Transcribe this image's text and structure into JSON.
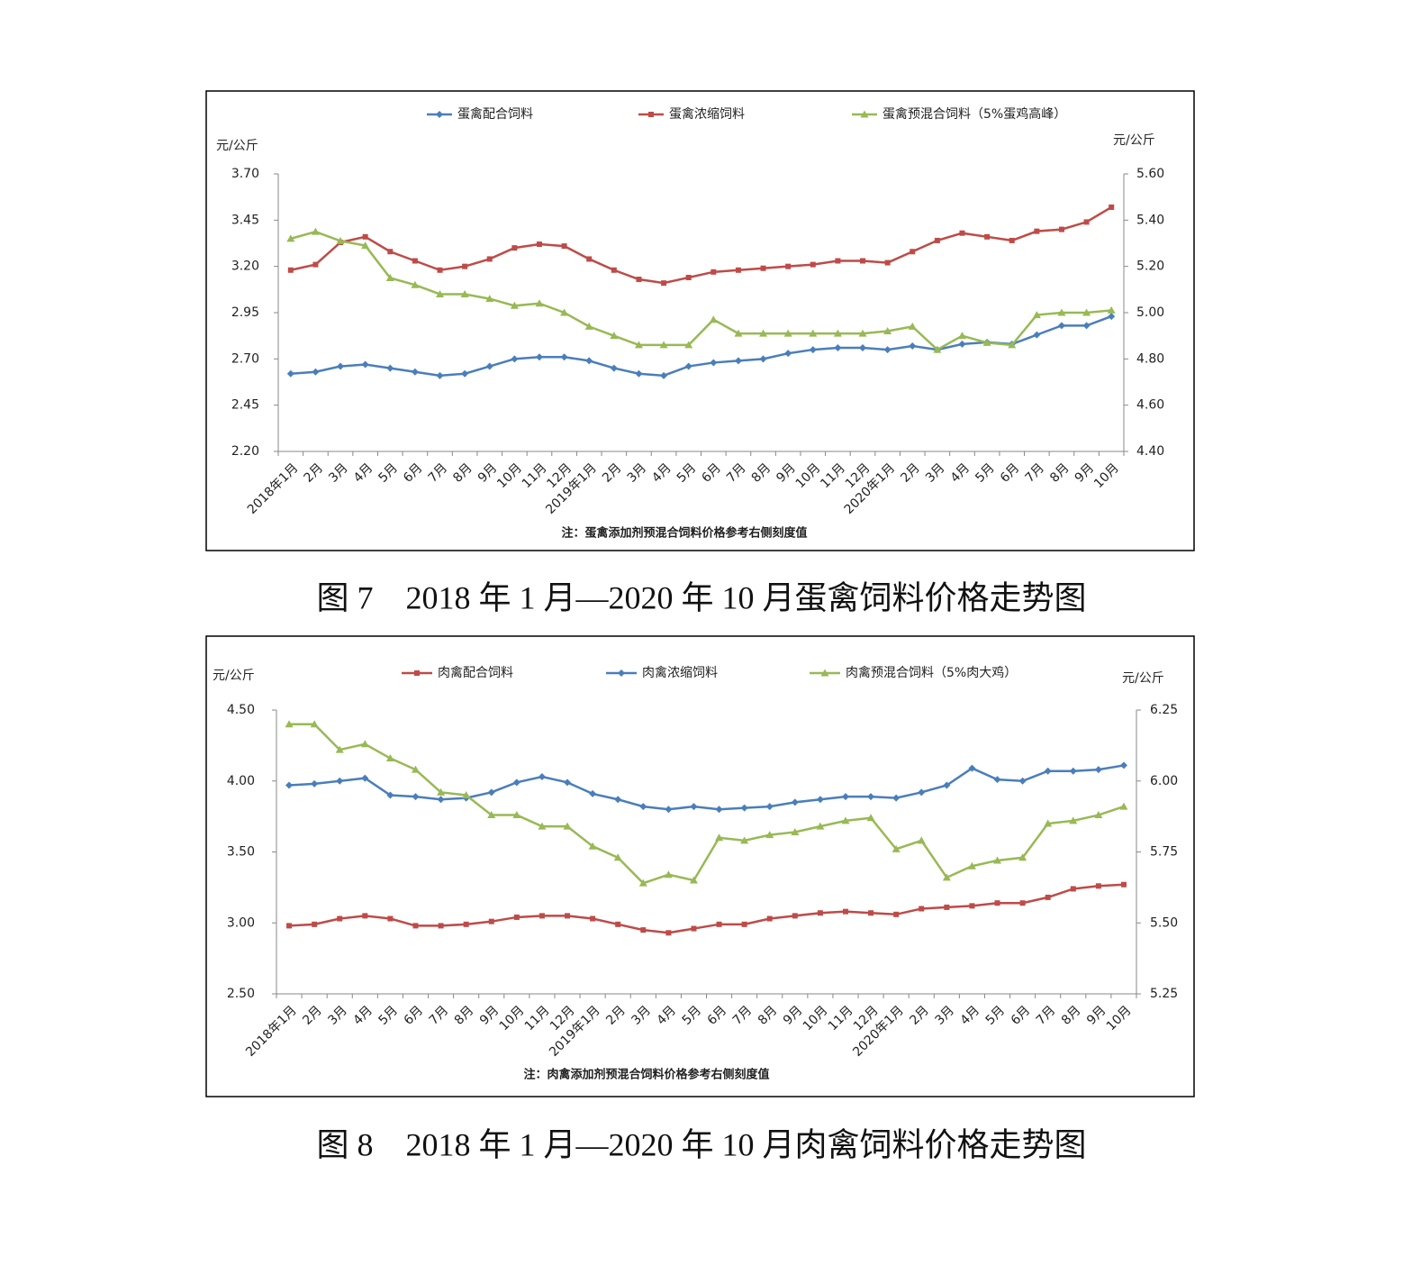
{
  "chart_data": [
    {
      "type": "line",
      "caption": "图 7　2018 年 1 月—2020 年 10 月蛋禽饲料价格走势图",
      "ylabel": "元/公斤",
      "y2label": "元/公斤",
      "note": "注：蛋禽添加剂预混合饲料价格参考右侧刻度值",
      "categories": [
        "2018年1月",
        "2月",
        "3月",
        "4月",
        "5月",
        "6月",
        "7月",
        "8月",
        "9月",
        "10月",
        "11月",
        "12月",
        "2019年1月",
        "2月",
        "3月",
        "4月",
        "5月",
        "6月",
        "7月",
        "8月",
        "9月",
        "10月",
        "11月",
        "12月",
        "2020年1月",
        "2月",
        "3月",
        "4月",
        "5月",
        "6月",
        "7月",
        "8月",
        "9月",
        "10月"
      ],
      "ylim": [
        2.2,
        3.7
      ],
      "yticks": [
        {
          "value": 2.2,
          "label": "2.20"
        },
        2.45,
        {
          "value": 2.7,
          "label": "2.70"
        },
        2.95,
        {
          "value": 3.2,
          "label": "3.20"
        },
        3.45,
        {
          "value": 3.7,
          "label": "3.70"
        }
      ],
      "y2lim": [
        4.4,
        5.6
      ],
      "y2ticks": [
        {
          "value": 4.4,
          "label": "4.40"
        },
        {
          "value": 4.6,
          "label": "4.60"
        },
        {
          "value": 4.8,
          "label": "4.80"
        },
        {
          "value": 5.0,
          "label": "5.00"
        },
        {
          "value": 5.2,
          "label": "5.20"
        },
        {
          "value": 5.4,
          "label": "5.40"
        },
        {
          "value": 5.6,
          "label": "5.60"
        }
      ],
      "series": [
        {
          "name": "蛋禽配合饲料",
          "color": "#4a7ebb",
          "marker": "diamond",
          "values": [
            2.62,
            2.63,
            2.66,
            2.67,
            2.65,
            2.63,
            2.61,
            2.62,
            2.66,
            2.7,
            2.71,
            2.71,
            2.69,
            2.65,
            2.62,
            2.61,
            2.66,
            2.68,
            2.69,
            2.7,
            2.73,
            2.75,
            2.76,
            2.76,
            2.75,
            2.77,
            2.75,
            2.78,
            2.79,
            2.78,
            2.83,
            2.88,
            2.88,
            2.93
          ]
        },
        {
          "name": "蛋禽浓缩饲料",
          "color": "#be4b48",
          "marker": "square",
          "values": [
            3.18,
            3.21,
            3.33,
            3.36,
            3.28,
            3.23,
            3.18,
            3.2,
            3.24,
            3.3,
            3.32,
            3.31,
            3.24,
            3.18,
            3.13,
            3.11,
            3.14,
            3.17,
            3.18,
            3.19,
            3.2,
            3.21,
            3.23,
            3.23,
            3.22,
            3.28,
            3.34,
            3.38,
            3.36,
            3.34,
            3.39,
            3.4,
            3.44,
            3.52
          ]
        },
        {
          "name": "蛋禽预混合饲料（5%蛋鸡高峰）",
          "color": "#98b954",
          "marker": "triangle",
          "axis": "y2",
          "values": [
            5.32,
            5.35,
            5.31,
            5.29,
            5.15,
            5.12,
            5.08,
            5.08,
            5.06,
            5.03,
            5.04,
            5.0,
            4.94,
            4.9,
            4.86,
            4.86,
            4.86,
            4.97,
            4.91,
            4.91,
            4.91,
            4.91,
            4.91,
            4.91,
            4.92,
            4.94,
            4.84,
            4.9,
            4.87,
            4.86,
            4.99,
            5.0,
            5.0,
            5.01
          ]
        }
      ]
    },
    {
      "type": "line",
      "caption": "图 8　2018 年 1 月—2020 年 10 月肉禽饲料价格走势图",
      "ylabel": "元/公斤",
      "y2label": "元/公斤",
      "note": "注：肉禽添加剂预混合饲料价格参考右侧刻度值",
      "categories": [
        "2018年1月",
        "2月",
        "3月",
        "4月",
        "5月",
        "6月",
        "7月",
        "8月",
        "9月",
        "10月",
        "11月",
        "12月",
        "2019年1月",
        "2月",
        "3月",
        "4月",
        "5月",
        "6月",
        "7月",
        "8月",
        "9月",
        "10月",
        "11月",
        "12月",
        "2020年1月",
        "2月",
        "3月",
        "4月",
        "5月",
        "6月",
        "7月",
        "8月",
        "9月",
        "10月"
      ],
      "ylim": [
        2.5,
        4.5
      ],
      "yticks": [
        {
          "value": 2.5,
          "label": "2.50"
        },
        {
          "value": 3.0,
          "label": "3.00"
        },
        {
          "value": 3.5,
          "label": "3.50"
        },
        {
          "value": 4.0,
          "label": "4.00"
        },
        {
          "value": 4.5,
          "label": "4.50"
        }
      ],
      "y2lim": [
        5.25,
        6.25
      ],
      "y2ticks": [
        5.25,
        {
          "value": 5.5,
          "label": "5.50"
        },
        5.75,
        {
          "value": 6.0,
          "label": "6.00"
        },
        6.25
      ],
      "series": [
        {
          "name": "肉禽配合饲料",
          "color": "#be4b48",
          "marker": "square",
          "values": [
            2.98,
            2.99,
            3.03,
            3.05,
            3.03,
            2.98,
            2.98,
            2.99,
            3.01,
            3.04,
            3.05,
            3.05,
            3.03,
            2.99,
            2.95,
            2.93,
            2.96,
            2.99,
            2.99,
            3.03,
            3.05,
            3.07,
            3.08,
            3.07,
            3.06,
            3.1,
            3.11,
            3.12,
            3.14,
            3.14,
            3.18,
            3.24,
            3.26,
            3.27
          ]
        },
        {
          "name": "肉禽浓缩饲料",
          "color": "#4a7ebb",
          "marker": "diamond",
          "values": [
            3.97,
            3.98,
            4.0,
            4.02,
            3.9,
            3.89,
            3.87,
            3.88,
            3.92,
            3.99,
            4.03,
            3.99,
            3.91,
            3.87,
            3.82,
            3.8,
            3.82,
            3.8,
            3.81,
            3.82,
            3.85,
            3.87,
            3.89,
            3.89,
            3.88,
            3.92,
            3.97,
            4.09,
            4.01,
            4.0,
            4.07,
            4.07,
            4.08,
            4.11
          ]
        },
        {
          "name": "肉禽预混合饲料（5%肉大鸡）",
          "color": "#98b954",
          "marker": "triangle",
          "axis": "y2",
          "values": [
            6.2,
            6.2,
            6.11,
            6.13,
            6.08,
            6.04,
            5.96,
            5.95,
            5.88,
            5.88,
            5.84,
            5.84,
            5.77,
            5.73,
            5.64,
            5.67,
            5.65,
            5.8,
            5.79,
            5.81,
            5.82,
            5.84,
            5.86,
            5.87,
            5.76,
            5.79,
            5.66,
            5.7,
            5.72,
            5.73,
            5.85,
            5.86,
            5.88,
            5.91
          ]
        }
      ]
    }
  ]
}
